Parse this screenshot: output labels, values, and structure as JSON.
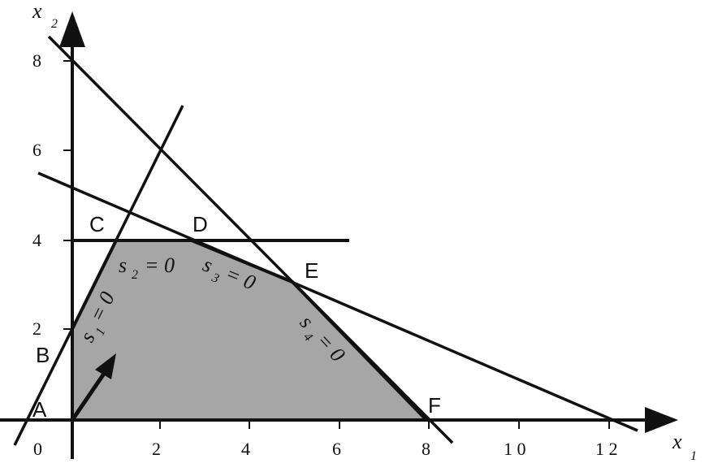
{
  "axes": {
    "x_label": "x",
    "x_subscript": "1",
    "y_label": "x",
    "y_subscript": "2",
    "x_ticks": [
      "0",
      "2",
      "4",
      "6",
      "8",
      "1 0",
      "1 2"
    ],
    "y_ticks": [
      "2",
      "4",
      "6",
      "8"
    ]
  },
  "points": {
    "A": "A",
    "B": "B",
    "C": "C",
    "D": "D",
    "E": "E",
    "F": "F"
  },
  "constraints": {
    "s1": {
      "symbol": "s",
      "sub": "1",
      "eq": "= 0"
    },
    "s2": {
      "symbol": "s",
      "sub": "2",
      "eq": "= 0"
    },
    "s3": {
      "symbol": "s",
      "sub": "3",
      "eq": "= 0"
    },
    "s4": {
      "symbol": "s",
      "sub": "4",
      "eq": "= 0"
    }
  },
  "colors": {
    "region_fill": "#a6a6a6",
    "line": "#111111"
  }
}
